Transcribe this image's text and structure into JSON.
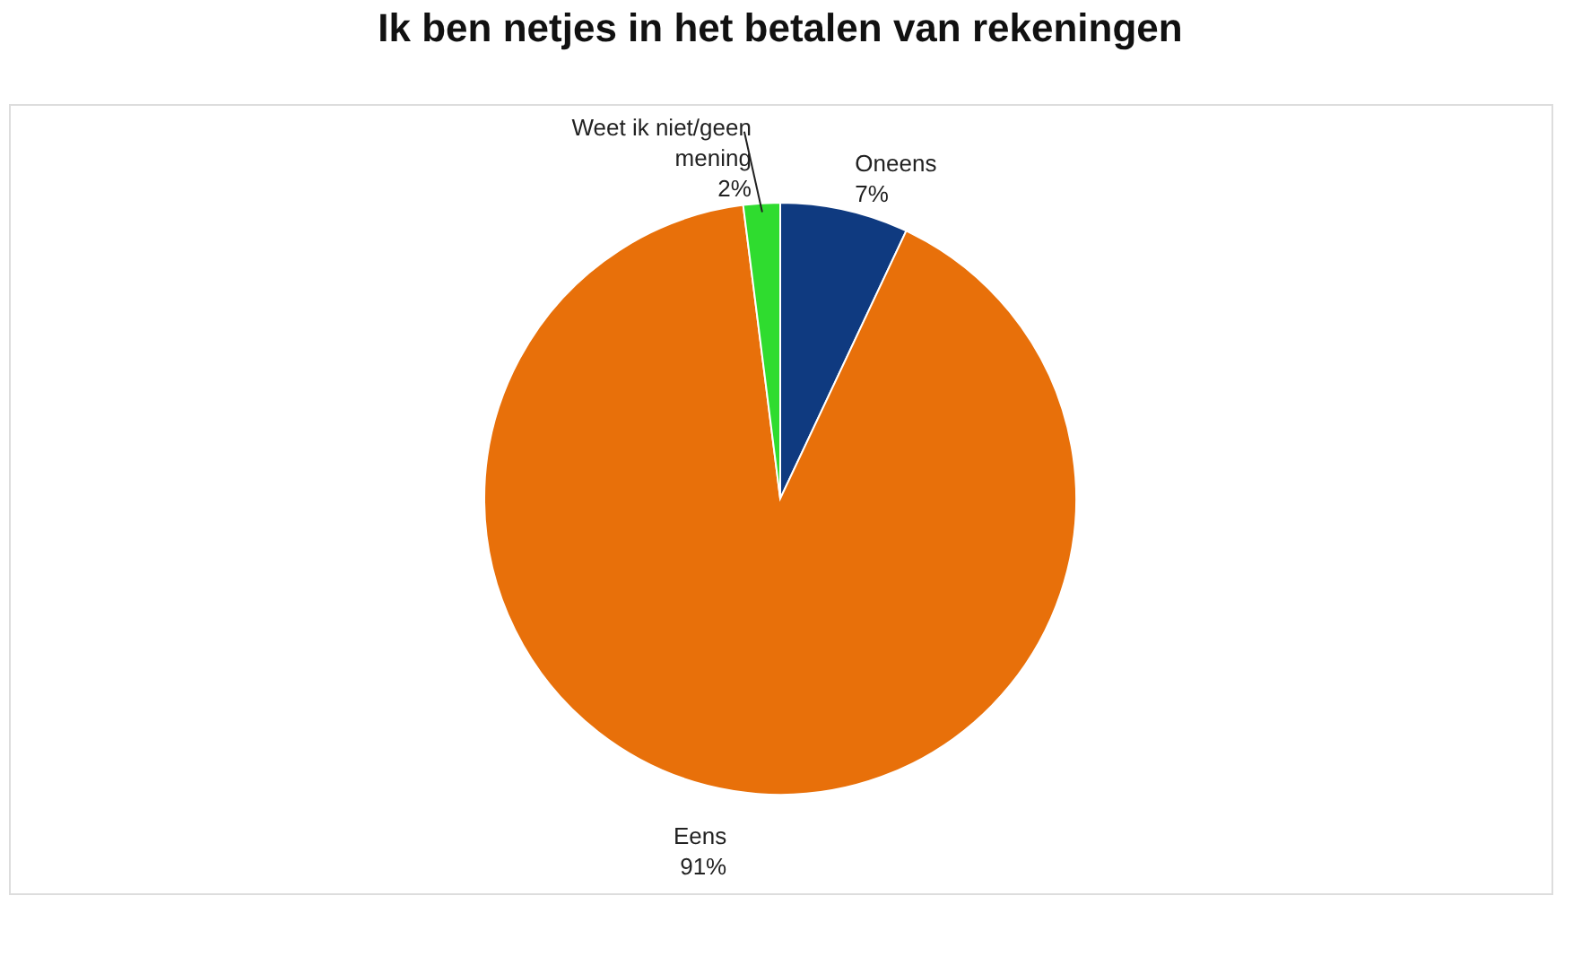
{
  "chart_data": {
    "type": "pie",
    "title": "Ik ben netjes in het betalen van rekeningen",
    "categories": [
      "Oneens",
      "Eens",
      "Weet ik niet/geen mening"
    ],
    "values": [
      7,
      91,
      2
    ],
    "colors": [
      "#0f3a80",
      "#e8700a",
      "#2fdc2f"
    ],
    "value_labels": [
      "7%",
      "91%",
      "2%"
    ],
    "legend": false
  }
}
